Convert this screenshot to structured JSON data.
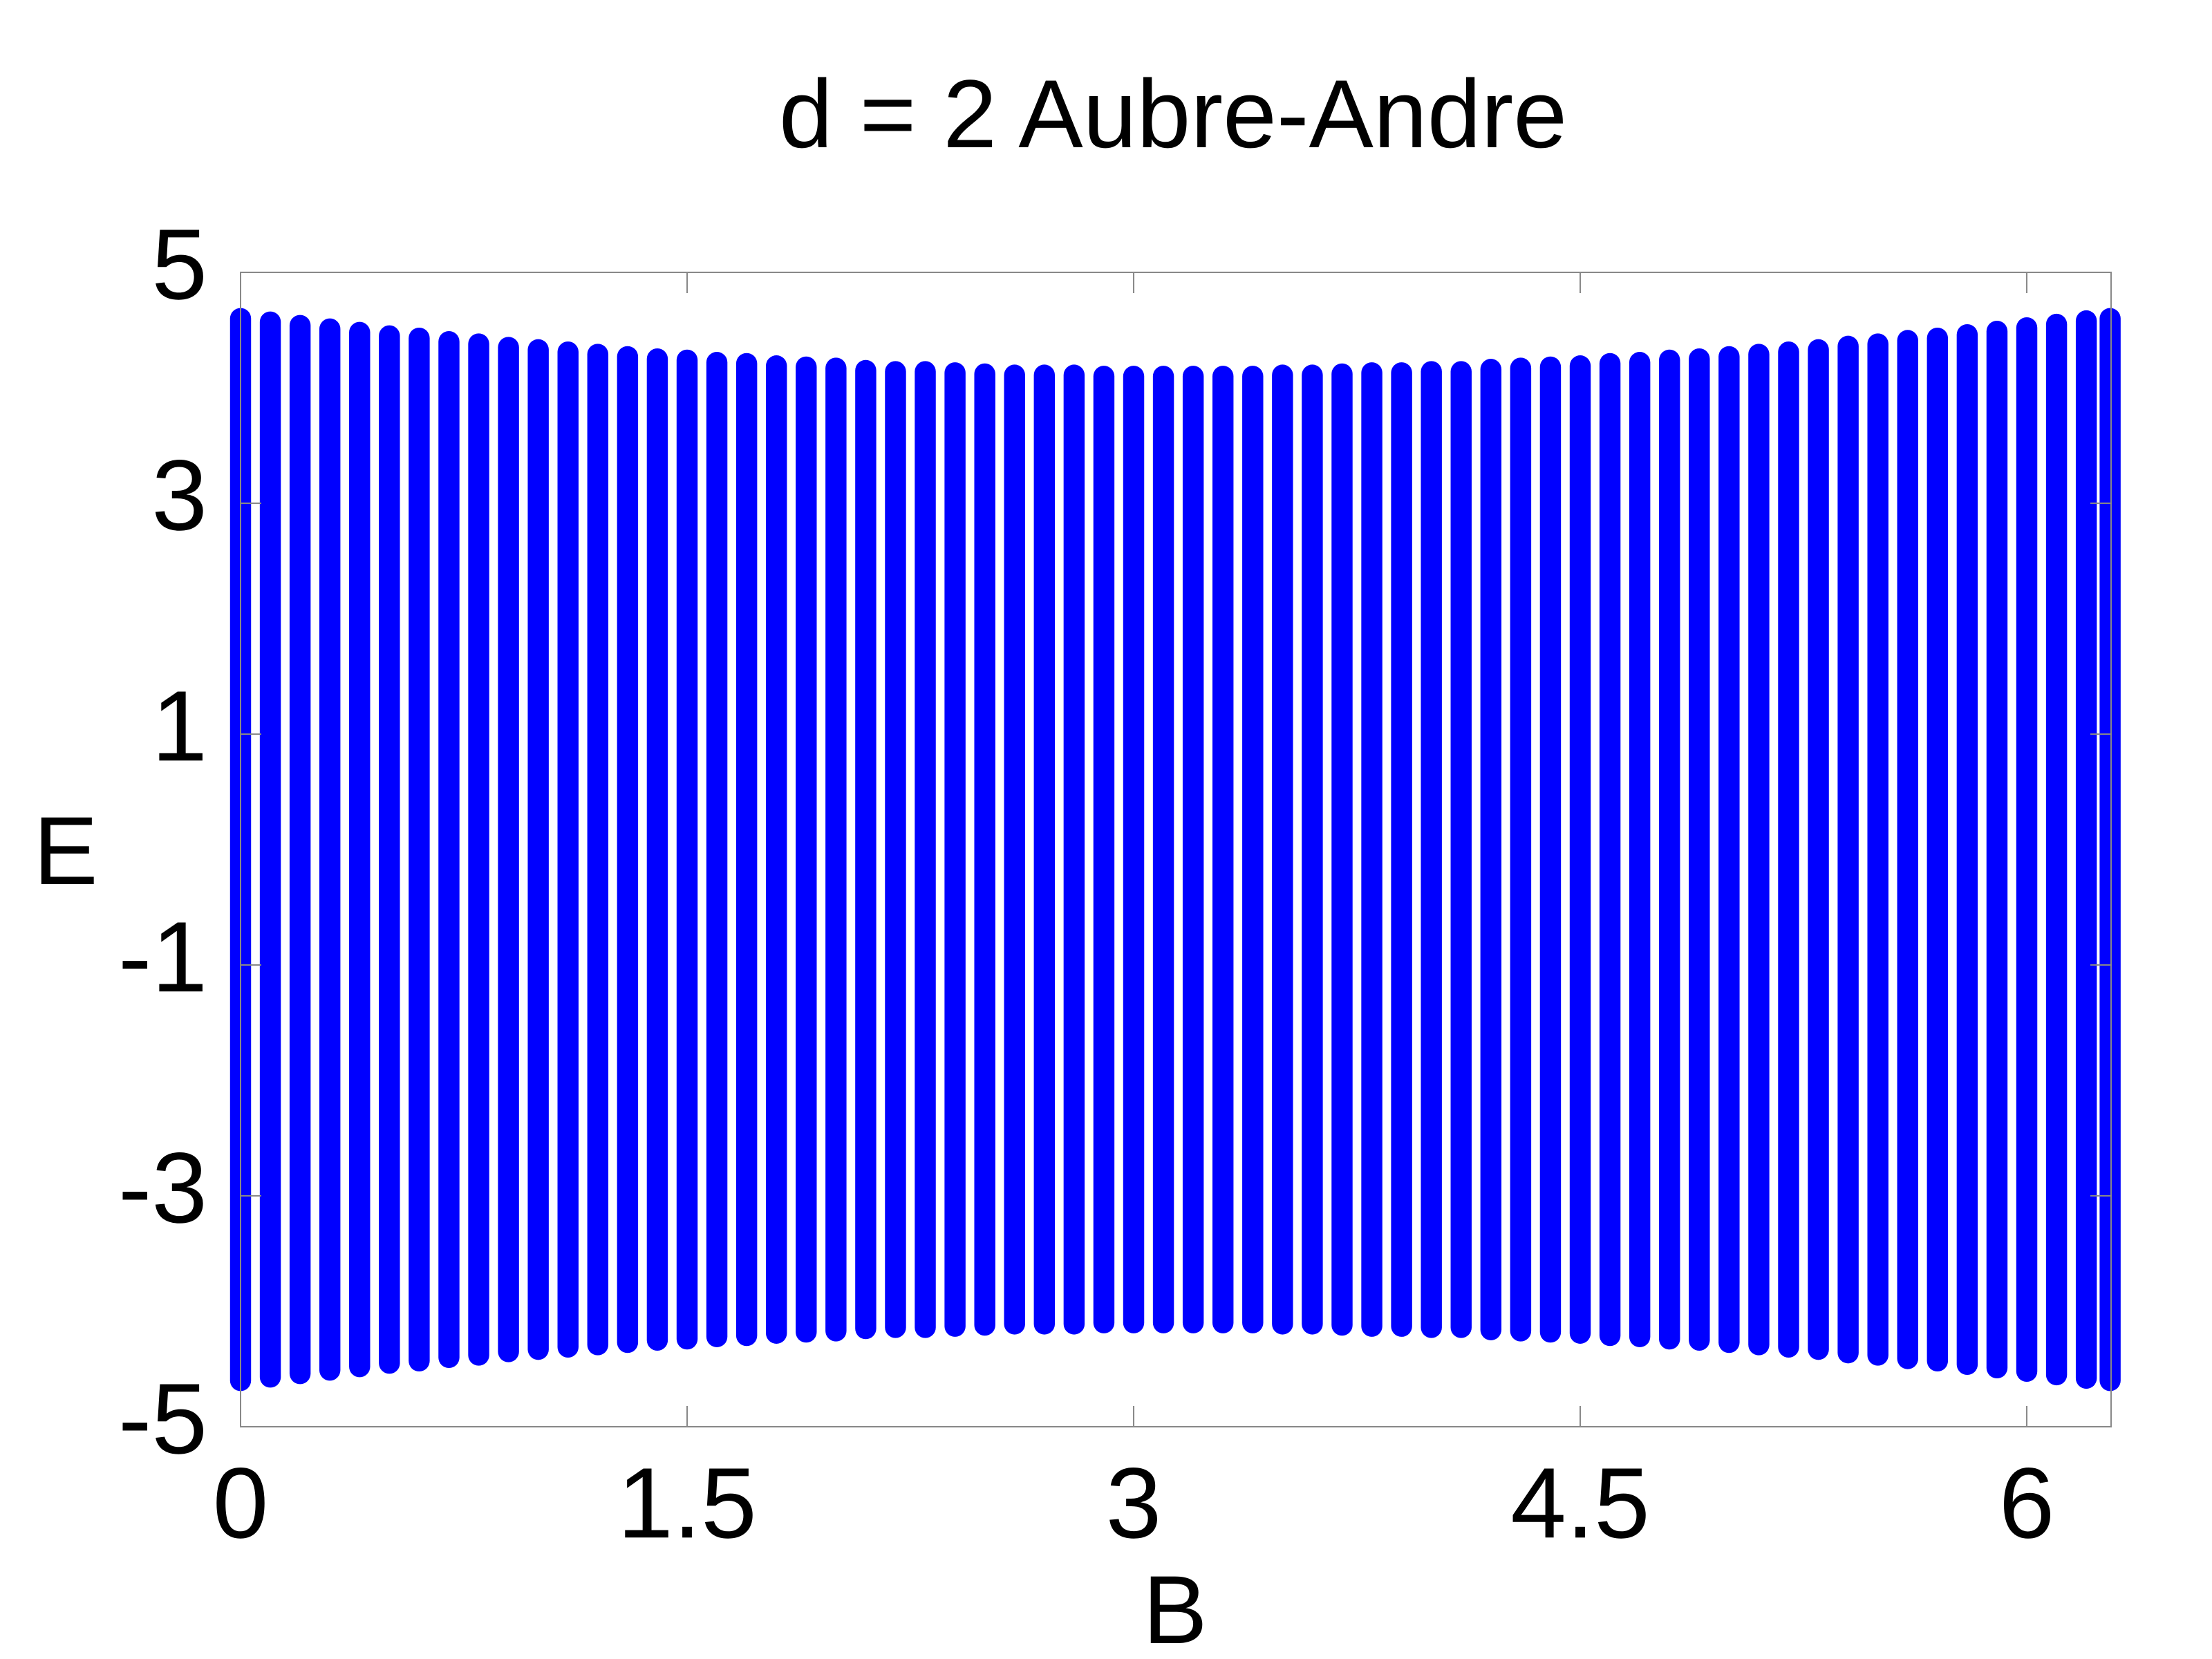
{
  "chart_data": {
    "type": "range-scatter",
    "title": "d = 2 Aubre-Andre",
    "xlabel": "B",
    "ylabel": "E",
    "x": [
      0,
      0.1,
      0.2,
      0.3,
      0.4,
      0.5,
      0.6,
      0.7,
      0.8,
      0.9,
      1.0,
      1.1,
      1.2,
      1.3,
      1.4,
      1.5,
      1.6,
      1.7,
      1.8,
      1.9,
      2.0,
      2.1,
      2.2,
      2.3,
      2.4,
      2.5,
      2.6,
      2.7,
      2.8,
      2.9,
      3.0,
      3.1,
      3.2,
      3.3,
      3.4,
      3.5,
      3.6,
      3.7,
      3.8,
      3.9,
      4.0,
      4.1,
      4.2,
      4.3,
      4.4,
      4.5,
      4.6,
      4.7,
      4.8,
      4.9,
      5.0,
      5.1,
      5.2,
      5.3,
      5.4,
      5.5,
      5.6,
      5.7,
      5.8,
      5.9,
      6.0,
      6.1,
      6.2,
      6.28
    ],
    "high": [
      4.6,
      4.57,
      4.54,
      4.51,
      4.48,
      4.45,
      4.43,
      4.4,
      4.38,
      4.35,
      4.33,
      4.31,
      4.29,
      4.27,
      4.25,
      4.24,
      4.22,
      4.21,
      4.19,
      4.18,
      4.17,
      4.15,
      4.14,
      4.14,
      4.13,
      4.12,
      4.11,
      4.11,
      4.11,
      4.1,
      4.1,
      4.1,
      4.1,
      4.1,
      4.1,
      4.11,
      4.11,
      4.12,
      4.13,
      4.13,
      4.14,
      4.14,
      4.16,
      4.17,
      4.18,
      4.19,
      4.21,
      4.22,
      4.24,
      4.25,
      4.27,
      4.29,
      4.31,
      4.33,
      4.36,
      4.38,
      4.41,
      4.43,
      4.46,
      4.49,
      4.52,
      4.55,
      4.58,
      4.6
    ],
    "low": [
      -4.6,
      -4.57,
      -4.54,
      -4.51,
      -4.48,
      -4.45,
      -4.43,
      -4.4,
      -4.38,
      -4.35,
      -4.33,
      -4.31,
      -4.29,
      -4.27,
      -4.25,
      -4.24,
      -4.22,
      -4.21,
      -4.19,
      -4.18,
      -4.17,
      -4.15,
      -4.14,
      -4.14,
      -4.13,
      -4.12,
      -4.11,
      -4.11,
      -4.11,
      -4.1,
      -4.1,
      -4.1,
      -4.1,
      -4.1,
      -4.1,
      -4.11,
      -4.11,
      -4.12,
      -4.13,
      -4.13,
      -4.14,
      -4.14,
      -4.16,
      -4.17,
      -4.18,
      -4.19,
      -4.21,
      -4.22,
      -4.24,
      -4.25,
      -4.27,
      -4.29,
      -4.31,
      -4.33,
      -4.36,
      -4.38,
      -4.41,
      -4.43,
      -4.46,
      -4.49,
      -4.52,
      -4.55,
      -4.58,
      -4.6
    ],
    "color": "#0000ff",
    "xlim": [
      0,
      6.2832
    ],
    "xticks": [
      0,
      1.5,
      3,
      4.5,
      6
    ],
    "ylim": [
      -5,
      5
    ],
    "yticks": [
      -5,
      -3,
      -1,
      1,
      3,
      5
    ],
    "grid": false
  }
}
